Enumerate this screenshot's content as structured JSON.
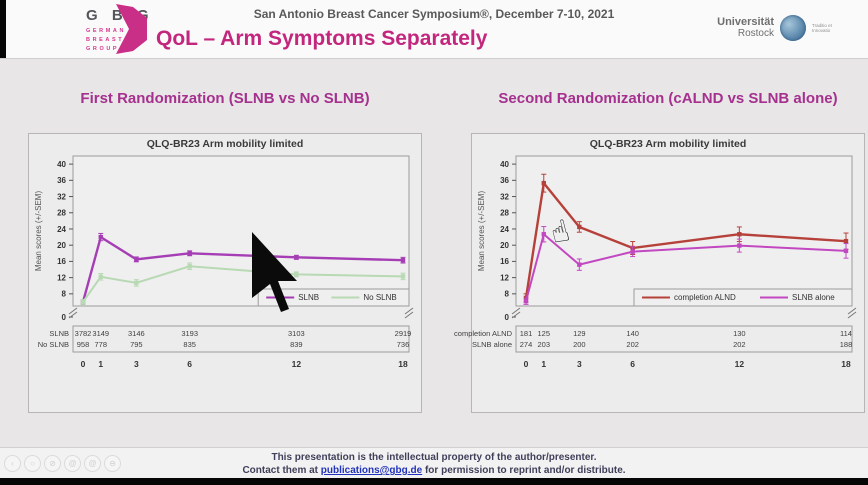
{
  "header": {
    "logo": {
      "letters": "G B G",
      "sub_lines": [
        "GERMAN",
        "BREAST",
        "GROUP"
      ]
    },
    "conference": "San Antonio Breast Cancer Symposium®, December 7-10, 2021",
    "title": "QoL – Arm Symptoms Separately",
    "university": {
      "line1": "Universität",
      "line2": "Rostock",
      "motto": "Traditio et Innovatio"
    }
  },
  "colors": {
    "brand_pink": "#c92f86",
    "slide_title_magenta": "#c2267d",
    "section_heading_magenta": "#a5308e",
    "slnb_purple": "#a53eb5",
    "no_slnb_green": "#b7d9b3",
    "completion_alnd_red": "#b5413a",
    "slnb_alone_magenta": "#c248c2"
  },
  "sections": [
    {
      "heading": "First Randomization (SLNB vs No SLNB)"
    },
    {
      "heading": "Second Randomization (cALND vs SLNB alone)"
    }
  ],
  "chart_data": [
    {
      "type": "line",
      "title": "QLQ-BR23 Arm mobility limited",
      "ylabel": "Mean scores (+/-SEM)",
      "xlabel": "",
      "x": [
        0,
        1,
        3,
        6,
        12,
        18
      ],
      "yticks": [
        0,
        8,
        12,
        16,
        20,
        24,
        28,
        32,
        36,
        40
      ],
      "ylim": [
        5,
        42
      ],
      "axis_break": true,
      "grid": false,
      "legend_position": "bottom-right",
      "series": [
        {
          "name": "SLNB",
          "color": "#a53eb5",
          "values": [
            6,
            22,
            16.5,
            18,
            17,
            16.3
          ],
          "errors": [
            0.6,
            0.9,
            0.6,
            0.6,
            0.5,
            0.7
          ],
          "n": [
            "3782",
            "3149",
            "3146",
            "3193",
            "3103",
            "2919"
          ]
        },
        {
          "name": "No SLNB",
          "color": "#b7d9b3",
          "values": [
            6,
            12.2,
            10.7,
            14.8,
            12.8,
            12.3
          ],
          "errors": [
            0.6,
            0.8,
            0.8,
            0.8,
            0.6,
            0.8
          ],
          "n": [
            "958",
            "778",
            "795",
            "835",
            "839",
            "736"
          ]
        }
      ]
    },
    {
      "type": "line",
      "title": "QLQ-BR23 Arm mobility limited",
      "ylabel": "Mean scores (+/-SEM)",
      "xlabel": "",
      "x": [
        0,
        1,
        3,
        6,
        12,
        18
      ],
      "yticks": [
        0,
        8,
        12,
        16,
        20,
        24,
        28,
        32,
        36,
        40
      ],
      "ylim": [
        5,
        42
      ],
      "axis_break": true,
      "grid": false,
      "legend_position": "bottom-right",
      "series": [
        {
          "name": "completion ALND",
          "color": "#b5413a",
          "values": [
            7,
            35.3,
            24.5,
            19.3,
            22.7,
            21
          ],
          "errors": [
            1,
            2.2,
            1.3,
            1.6,
            1.8,
            2
          ],
          "n": [
            "181",
            "125",
            "129",
            "140",
            "130",
            "114"
          ]
        },
        {
          "name": "SLNB alone",
          "color": "#c248c2",
          "values": [
            6.2,
            22.7,
            15.2,
            18.4,
            19.9,
            18.6
          ],
          "errors": [
            0.8,
            1.9,
            1.4,
            1.2,
            1.6,
            1.8
          ],
          "n": [
            "274",
            "203",
            "200",
            "202",
            "202",
            "188"
          ]
        }
      ]
    }
  ],
  "footer": {
    "line1": "This presentation is the intellectual property of the author/presenter.",
    "line2_prefix": "Contact them at ",
    "email": "publications@gbg.de",
    "line2_suffix": " for permission to reprint and/or distribute."
  },
  "ghost_toolbar": {
    "icons": [
      "‹",
      "○",
      "⊘",
      "@",
      "@",
      "⊖"
    ]
  }
}
